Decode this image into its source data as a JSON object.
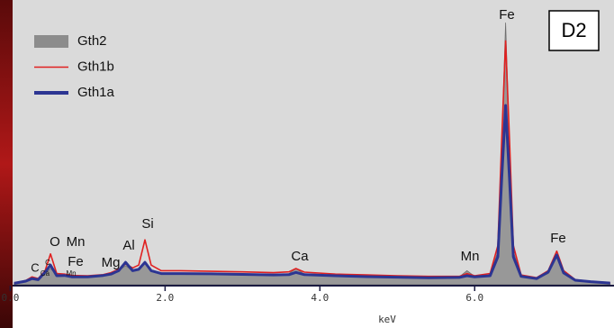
{
  "chart_data": {
    "type": "line",
    "panel_label": "D2",
    "x_label": "keV",
    "xlim": [
      0.03,
      7.8
    ],
    "ylim": [
      0,
      100
    ],
    "xticks": [
      {
        "value": 0,
        "label": "0.0"
      },
      {
        "value": 2,
        "label": "2.0"
      },
      {
        "value": 4,
        "label": "4.0"
      },
      {
        "value": 6,
        "label": "6.0"
      }
    ],
    "x": [
      0.05,
      0.2,
      0.28,
      0.36,
      0.45,
      0.52,
      0.6,
      0.7,
      0.8,
      1.0,
      1.2,
      1.3,
      1.4,
      1.49,
      1.58,
      1.66,
      1.74,
      1.82,
      1.95,
      2.2,
      2.6,
      3.0,
      3.4,
      3.6,
      3.69,
      3.8,
      4.2,
      4.6,
      5.0,
      5.4,
      5.8,
      5.9,
      6.0,
      6.2,
      6.3,
      6.35,
      6.4,
      6.45,
      6.5,
      6.6,
      6.8,
      6.95,
      7.06,
      7.15,
      7.3,
      7.5,
      7.75
    ],
    "series": [
      {
        "name": "Gth2",
        "color": "#8c8c8c",
        "style": "area",
        "values": [
          0.5,
          1.5,
          2.6,
          2,
          4,
          5.8,
          3.5,
          3.5,
          3,
          3,
          3.5,
          4,
          5,
          6.8,
          5,
          5.5,
          7.7,
          5,
          4,
          4,
          4,
          3.8,
          3.6,
          4,
          5.8,
          3.8,
          3.3,
          3,
          2.8,
          2.6,
          2.8,
          5,
          3,
          3.5,
          12,
          50,
          93.5,
          50,
          12,
          3,
          2.2,
          4,
          10,
          4,
          1.5,
          1,
          0.6
        ]
      },
      {
        "name": "Gth1b",
        "color": "#e02020",
        "style": "line",
        "values": [
          0.5,
          1.5,
          2.8,
          2.2,
          5,
          11,
          4,
          3.8,
          3.3,
          3.2,
          3.6,
          4.3,
          5.5,
          7.4,
          6,
          7,
          16,
          7,
          5,
          5,
          4.8,
          4.6,
          4.3,
          4.6,
          5.8,
          4.5,
          3.8,
          3.5,
          3.2,
          3,
          3,
          4,
          3.2,
          4,
          14,
          52,
          87,
          52,
          14,
          3.5,
          2.5,
          5,
          12,
          5,
          1.8,
          1.2,
          0.7
        ]
      },
      {
        "name": "Gth1a",
        "color": "#2c3592",
        "style": "line",
        "values": [
          0.5,
          1.3,
          2.2,
          1.8,
          4.5,
          7,
          3.2,
          3.3,
          2.8,
          2.8,
          3.3,
          3.8,
          5,
          8,
          5,
          5.5,
          8,
          5,
          4,
          4,
          3.9,
          3.7,
          3.5,
          3.6,
          4.4,
          3.6,
          3.2,
          2.9,
          2.7,
          2.5,
          2.6,
          3.2,
          2.8,
          3.2,
          10,
          38,
          64,
          38,
          10,
          3,
          2.2,
          4.5,
          10.6,
          4.2,
          1.6,
          1.1,
          0.6
        ]
      }
    ],
    "annotations": [
      "Fe",
      "Fe",
      "Mn",
      "Ca",
      "Si",
      "Al",
      "Mg",
      "Mn",
      "Fe",
      "O",
      "C",
      "Ca",
      "C",
      "Mn"
    ]
  }
}
